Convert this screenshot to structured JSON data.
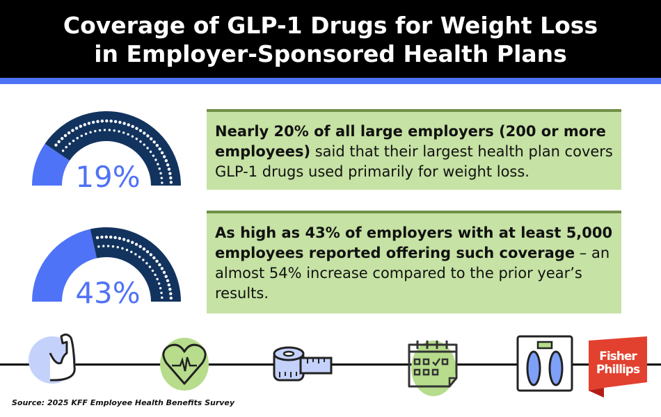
{
  "header": {
    "title_line1": "Coverage of GLP-1 Drugs for Weight Loss",
    "title_line2": "in Employer-Sponsored Health Plans"
  },
  "stats": [
    {
      "value_label": "19%",
      "fraction": 0.19,
      "bold_text": "Nearly 20% of all large employers (200 or more employees)",
      "text": " said that their largest health plan covers GLP-1 drugs used primarily for weight loss."
    },
    {
      "value_label": "43%",
      "fraction": 0.43,
      "bold_text": "As high as 43% of employers with at least 5,000 employees reported offering such coverage",
      "text": " – an almost 54% increase compared to the prior year’s results."
    }
  ],
  "icons": [
    "flexed-arm-icon",
    "heart-rate-icon",
    "tape-measure-icon",
    "calendar-icon",
    "bathroom-scale-icon"
  ],
  "source": "Source: 2025 KFF Employee Health Benefits Survey",
  "logo": {
    "line1": "Fisher",
    "line2": "Phillips"
  },
  "colors": {
    "accent": "#4f73f6",
    "dark": "#13335f",
    "green": "#c6e2a4",
    "logo_red": "#e2412f"
  }
}
